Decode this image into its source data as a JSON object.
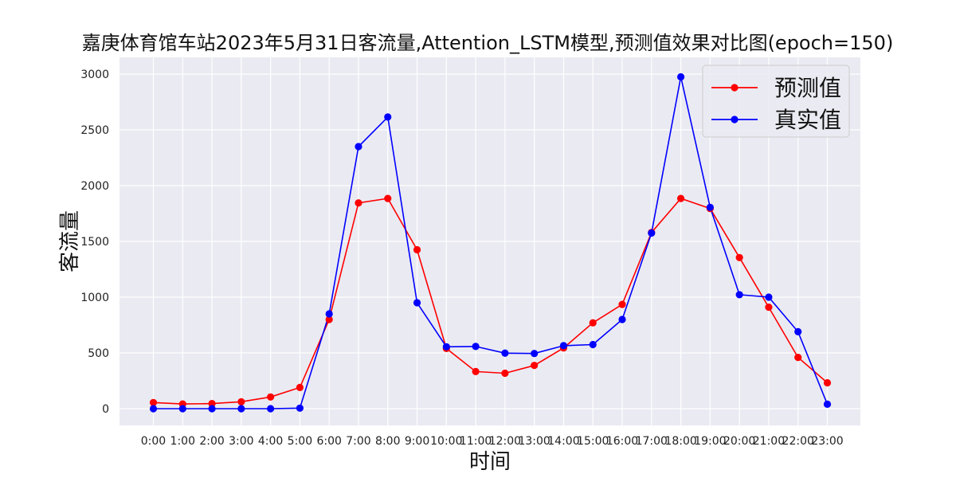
{
  "chart_data": {
    "type": "line",
    "title": "嘉庚体育馆车站2023年5月31日客流量,Attention_LSTM模型,预测值效果对比图(epoch=150)",
    "xlabel": "时间",
    "ylabel": "客流量",
    "categories": [
      "0:00",
      "1:00",
      "2:00",
      "3:00",
      "4:00",
      "5:00",
      "6:00",
      "7:00",
      "8:00",
      "9:00",
      "10:00",
      "11:00",
      "12:00",
      "13:00",
      "14:00",
      "15:00",
      "16:00",
      "17:00",
      "18:00",
      "19:00",
      "20:00",
      "21:00",
      "22:00",
      "23:00"
    ],
    "yticks": [
      0,
      500,
      1000,
      1500,
      2000,
      2500,
      3000
    ],
    "ylim": [
      -150,
      3150
    ],
    "grid": true,
    "legend_position": "top-right",
    "series": [
      {
        "name": "预测值",
        "color": "#ff0000",
        "values": [
          55,
          42,
          46,
          62,
          105,
          190,
          800,
          1845,
          1885,
          1425,
          540,
          333,
          318,
          388,
          545,
          770,
          935,
          1580,
          1885,
          1795,
          1355,
          910,
          460,
          232
        ]
      },
      {
        "name": "真实值",
        "color": "#0000ff",
        "values": [
          0,
          0,
          0,
          0,
          0,
          5,
          850,
          2350,
          2615,
          950,
          555,
          558,
          498,
          495,
          565,
          575,
          800,
          1575,
          2975,
          1805,
          1022,
          1000,
          690,
          40
        ]
      }
    ]
  }
}
